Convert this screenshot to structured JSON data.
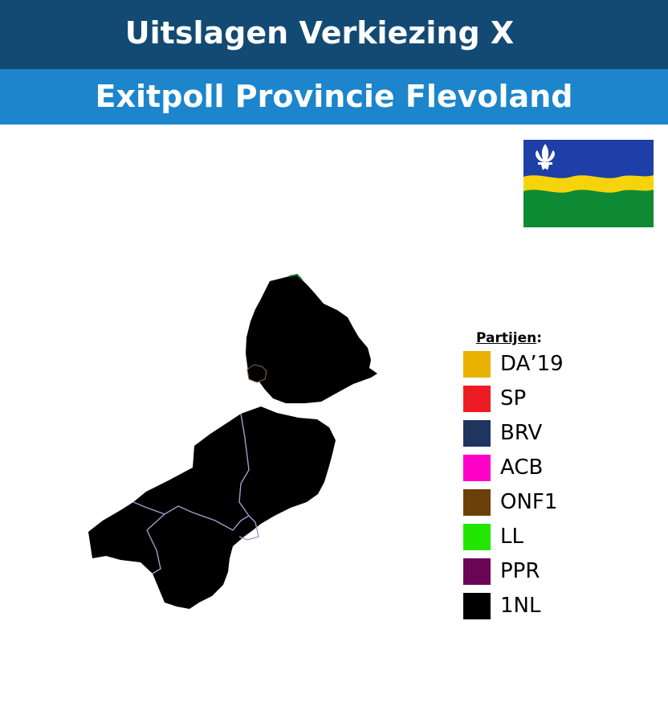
{
  "header": {
    "title": "Uitslagen Verkiezing X",
    "subtitle": "Exitpoll Provincie Flevoland"
  },
  "colors": {
    "header_dark": "#124a73",
    "header_light": "#1c85cc",
    "map_fill": "#000000",
    "border": "#9aa0c8",
    "flag_blue": "#1e3fa8",
    "flag_yellow": "#f6d40c",
    "flag_green": "#0f8a34"
  },
  "flag": {
    "icon": "flag-of-flevoland"
  },
  "legend": {
    "title": "Partijen",
    "title_suffix": ":",
    "items": [
      {
        "label": "DA’19",
        "color": "#e8b100"
      },
      {
        "label": "SP",
        "color": "#ed1c24"
      },
      {
        "label": "BRV",
        "color": "#1f3560"
      },
      {
        "label": "ACB",
        "color": "#ff00c8"
      },
      {
        "label": "ONF1",
        "color": "#6b4109"
      },
      {
        "label": "LL",
        "color": "#22e600"
      },
      {
        "label": "PPR",
        "color": "#6b0656"
      },
      {
        "label": "1NL",
        "color": "#000000"
      }
    ]
  }
}
